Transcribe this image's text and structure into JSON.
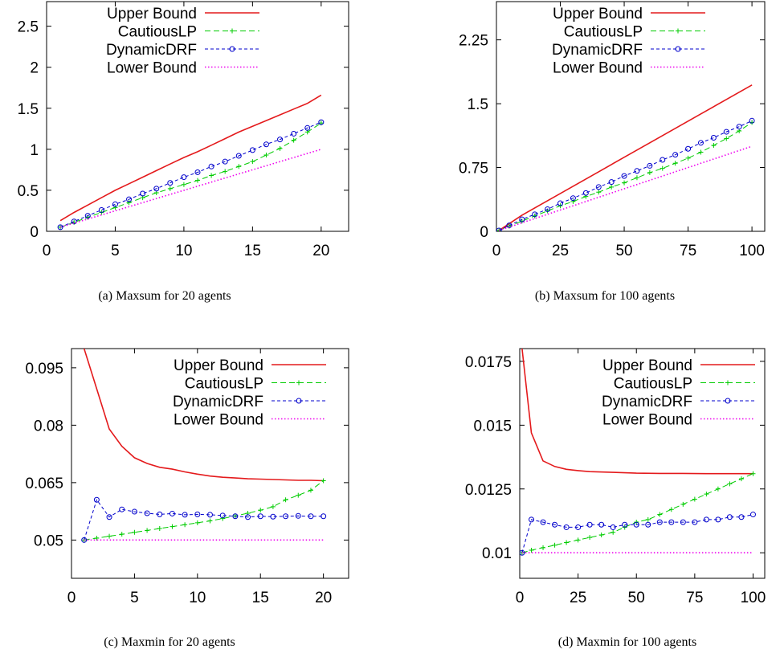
{
  "colors": {
    "upper": "#e41a1c",
    "cautious": "#00cc00",
    "dynamic": "#0000cc",
    "lower": "#ee00ee",
    "axis": "#000000"
  },
  "chart_data": [
    {
      "type": "line",
      "caption": "(a)  Maxsum for 20 agents",
      "xlim": [
        0,
        22
      ],
      "ylim": [
        0,
        2.8
      ],
      "xticks": [
        0,
        5,
        10,
        15,
        20
      ],
      "yticks": [
        0,
        0.5,
        1,
        1.5,
        2,
        2.5
      ],
      "xtick_labels": [
        "0",
        "5",
        "10",
        "15",
        "20"
      ],
      "ytick_labels": [
        "0",
        "0.5",
        "1",
        "1.5",
        "2",
        "2.5"
      ],
      "legend_position": "top-left",
      "grid": false,
      "series": [
        {
          "name": "Upper Bound",
          "style": "solid",
          "marker": "none",
          "x": [
            1,
            2,
            3,
            4,
            5,
            6,
            7,
            8,
            9,
            10,
            11,
            12,
            13,
            14,
            15,
            16,
            17,
            18,
            19,
            20
          ],
          "y": [
            0.13,
            0.23,
            0.32,
            0.41,
            0.5,
            0.58,
            0.66,
            0.74,
            0.82,
            0.9,
            0.97,
            1.05,
            1.13,
            1.21,
            1.28,
            1.35,
            1.42,
            1.49,
            1.56,
            1.66
          ]
        },
        {
          "name": "CautiousLP",
          "style": "dashed",
          "marker": "plus",
          "x": [
            1,
            2,
            3,
            4,
            5,
            6,
            7,
            8,
            9,
            10,
            11,
            12,
            13,
            14,
            15,
            16,
            17,
            18,
            19,
            20
          ],
          "y": [
            0.05,
            0.11,
            0.17,
            0.23,
            0.29,
            0.35,
            0.41,
            0.47,
            0.52,
            0.57,
            0.62,
            0.68,
            0.73,
            0.79,
            0.85,
            0.93,
            1.01,
            1.11,
            1.21,
            1.32
          ]
        },
        {
          "name": "DynamicDRF",
          "style": "dashed-fine",
          "marker": "circle",
          "x": [
            1,
            2,
            3,
            4,
            5,
            6,
            7,
            8,
            9,
            10,
            11,
            12,
            13,
            14,
            15,
            16,
            17,
            18,
            19,
            20
          ],
          "y": [
            0.05,
            0.12,
            0.19,
            0.26,
            0.33,
            0.39,
            0.46,
            0.52,
            0.59,
            0.66,
            0.72,
            0.79,
            0.85,
            0.92,
            0.99,
            1.06,
            1.12,
            1.19,
            1.26,
            1.33
          ]
        },
        {
          "name": "Lower Bound",
          "style": "dotted",
          "marker": "none",
          "x": [
            1,
            20
          ],
          "y": [
            0.05,
            1.0
          ]
        }
      ]
    },
    {
      "type": "line",
      "caption": "(b)  Maxsum for 100 agents",
      "xlim": [
        0,
        105
      ],
      "ylim": [
        0,
        2.7
      ],
      "xticks": [
        0,
        25,
        50,
        75,
        100
      ],
      "yticks": [
        0,
        0.75,
        1.5,
        2.25
      ],
      "xtick_labels": [
        "0",
        "25",
        "50",
        "75",
        "100"
      ],
      "ytick_labels": [
        "0",
        "0.75",
        "1.5",
        "2.25"
      ],
      "legend_position": "top-left",
      "grid": false,
      "series": [
        {
          "name": "Upper Bound",
          "style": "solid",
          "marker": "none",
          "x": [
            1,
            10,
            20,
            30,
            40,
            50,
            60,
            70,
            80,
            90,
            100
          ],
          "y": [
            0.01,
            0.19,
            0.36,
            0.53,
            0.7,
            0.87,
            1.04,
            1.21,
            1.38,
            1.55,
            1.72
          ]
        },
        {
          "name": "CautiousLP",
          "style": "dashed",
          "marker": "plus",
          "x": [
            1,
            5,
            10,
            15,
            20,
            25,
            30,
            35,
            40,
            45,
            50,
            55,
            60,
            65,
            70,
            75,
            80,
            85,
            90,
            95,
            100
          ],
          "y": [
            0.01,
            0.06,
            0.12,
            0.18,
            0.24,
            0.3,
            0.35,
            0.41,
            0.46,
            0.52,
            0.57,
            0.63,
            0.69,
            0.74,
            0.8,
            0.86,
            0.93,
            1.01,
            1.09,
            1.18,
            1.28
          ]
        },
        {
          "name": "DynamicDRF",
          "style": "dashed-fine",
          "marker": "circle",
          "x": [
            1,
            5,
            10,
            15,
            20,
            25,
            30,
            35,
            40,
            45,
            50,
            55,
            60,
            65,
            70,
            75,
            80,
            85,
            90,
            95,
            100
          ],
          "y": [
            0.01,
            0.07,
            0.14,
            0.2,
            0.26,
            0.33,
            0.39,
            0.45,
            0.52,
            0.58,
            0.65,
            0.71,
            0.77,
            0.84,
            0.9,
            0.97,
            1.04,
            1.1,
            1.17,
            1.23,
            1.3
          ]
        },
        {
          "name": "Lower Bound",
          "style": "dotted",
          "marker": "none",
          "x": [
            1,
            100
          ],
          "y": [
            0.01,
            1.0
          ]
        }
      ]
    },
    {
      "type": "line",
      "caption": "(c)  Maxmin for 20 agents",
      "xlim": [
        0,
        22
      ],
      "ylim": [
        0.04,
        0.1
      ],
      "xticks": [
        0,
        5,
        10,
        15,
        20
      ],
      "yticks": [
        0.05,
        0.065,
        0.08,
        0.095
      ],
      "xtick_labels": [
        "0",
        "5",
        "10",
        "15",
        "20"
      ],
      "ytick_labels": [
        "0.05",
        "0.065",
        "0.08",
        "0.095"
      ],
      "legend_position": "top-right",
      "grid": false,
      "series": [
        {
          "name": "Upper Bound",
          "style": "solid",
          "marker": "none",
          "x": [
            1,
            2,
            3,
            4,
            5,
            6,
            7,
            8,
            9,
            10,
            11,
            12,
            13,
            14,
            15,
            16,
            17,
            18,
            19,
            20
          ],
          "y": [
            0.1,
            0.0895,
            0.079,
            0.0745,
            0.0715,
            0.07,
            0.069,
            0.0685,
            0.0678,
            0.0672,
            0.0667,
            0.0664,
            0.0662,
            0.066,
            0.0659,
            0.0658,
            0.0657,
            0.0656,
            0.0656,
            0.0655
          ]
        },
        {
          "name": "CautiousLP",
          "style": "dashed",
          "marker": "plus",
          "x": [
            1,
            2,
            3,
            4,
            5,
            6,
            7,
            8,
            9,
            10,
            11,
            12,
            13,
            14,
            15,
            16,
            17,
            18,
            19,
            20
          ],
          "y": [
            0.05,
            0.0505,
            0.051,
            0.0515,
            0.052,
            0.0525,
            0.053,
            0.0535,
            0.054,
            0.0545,
            0.055,
            0.0556,
            0.0563,
            0.057,
            0.0578,
            0.0587,
            0.0605,
            0.0617,
            0.063,
            0.0655
          ]
        },
        {
          "name": "DynamicDRF",
          "style": "dashed-fine",
          "marker": "circle",
          "x": [
            1,
            2,
            3,
            4,
            5,
            6,
            7,
            8,
            9,
            10,
            11,
            12,
            13,
            14,
            15,
            16,
            17,
            18,
            19,
            20
          ],
          "y": [
            0.05,
            0.0605,
            0.056,
            0.058,
            0.0574,
            0.057,
            0.0567,
            0.0569,
            0.0566,
            0.0567,
            0.0566,
            0.0564,
            0.0562,
            0.056,
            0.0562,
            0.0561,
            0.0562,
            0.0563,
            0.0562,
            0.0562
          ]
        },
        {
          "name": "Lower Bound",
          "style": "dotted",
          "marker": "none",
          "x": [
            1,
            20
          ],
          "y": [
            0.05,
            0.05
          ]
        }
      ]
    },
    {
      "type": "line",
      "caption": "(d)  Maxmin for 100 agents",
      "xlim": [
        0,
        105
      ],
      "ylim": [
        0.009,
        0.018
      ],
      "xticks": [
        0,
        25,
        50,
        75,
        100
      ],
      "yticks": [
        0.01,
        0.0125,
        0.015,
        0.0175
      ],
      "xtick_labels": [
        "0",
        "25",
        "50",
        "75",
        "100"
      ],
      "ytick_labels": [
        "0.01",
        "0.0125",
        "0.015",
        "0.0175"
      ],
      "legend_position": "top-right",
      "grid": false,
      "series": [
        {
          "name": "Upper Bound",
          "style": "solid",
          "marker": "none",
          "x": [
            1,
            5,
            10,
            15,
            20,
            25,
            30,
            40,
            50,
            60,
            70,
            80,
            90,
            100
          ],
          "y": [
            0.018,
            0.0147,
            0.0136,
            0.01338,
            0.01327,
            0.01322,
            0.01318,
            0.01315,
            0.01312,
            0.01311,
            0.01311,
            0.0131,
            0.0131,
            0.0131
          ]
        },
        {
          "name": "CautiousLP",
          "style": "dashed",
          "marker": "plus",
          "x": [
            1,
            5,
            10,
            15,
            20,
            25,
            30,
            35,
            40,
            45,
            50,
            55,
            60,
            65,
            70,
            75,
            80,
            85,
            90,
            95,
            100
          ],
          "y": [
            0.01,
            0.0101,
            0.0102,
            0.0103,
            0.0104,
            0.0105,
            0.0106,
            0.0107,
            0.0108,
            0.011,
            0.0112,
            0.0113,
            0.0115,
            0.0117,
            0.0119,
            0.0121,
            0.0123,
            0.0125,
            0.0127,
            0.0129,
            0.0131
          ]
        },
        {
          "name": "DynamicDRF",
          "style": "dashed-fine",
          "marker": "circle",
          "x": [
            1,
            5,
            10,
            15,
            20,
            25,
            30,
            35,
            40,
            45,
            50,
            55,
            60,
            65,
            70,
            75,
            80,
            85,
            90,
            95,
            100
          ],
          "y": [
            0.01,
            0.0113,
            0.0112,
            0.0111,
            0.011,
            0.011,
            0.0111,
            0.0111,
            0.011,
            0.0111,
            0.0111,
            0.0111,
            0.0112,
            0.0112,
            0.0112,
            0.0112,
            0.0113,
            0.0113,
            0.0114,
            0.0114,
            0.0115
          ]
        },
        {
          "name": "Lower Bound",
          "style": "dotted",
          "marker": "none",
          "x": [
            1,
            100
          ],
          "y": [
            0.01,
            0.01
          ]
        }
      ]
    }
  ]
}
